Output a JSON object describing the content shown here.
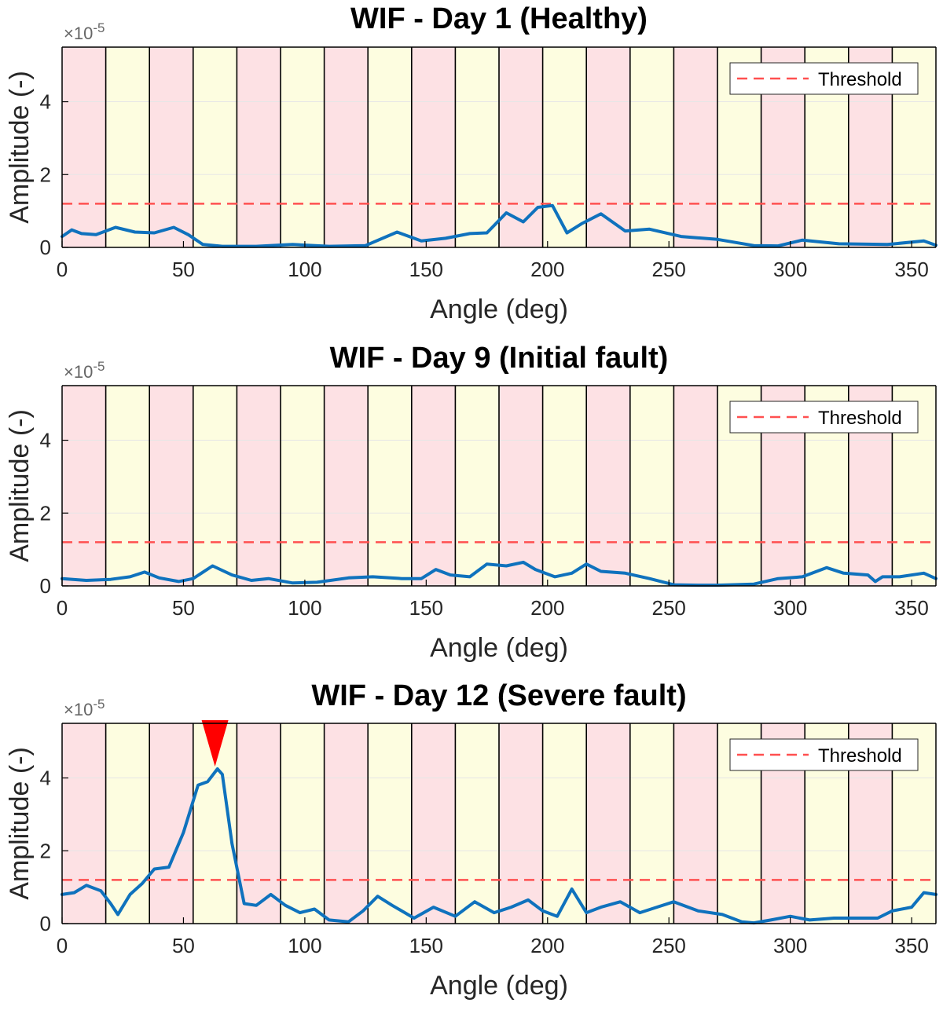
{
  "colors": {
    "band_pink": "#fde1e4",
    "band_yellow": "#fdfde0",
    "line": "#0f72bd",
    "threshold": "#ff5050",
    "marker": "#ff0000",
    "axis_text": "#262626",
    "grid": "#e6e6e6"
  },
  "chart_data": [
    {
      "type": "line",
      "title": "WIF - Day 1 (Healthy)",
      "xlabel": "Angle (deg)",
      "ylabel": "Amplitude (-)",
      "exponent_label": "×10",
      "exponent_power": "-5",
      "xlim": [
        0,
        360
      ],
      "ylim": [
        0,
        5.5
      ],
      "xticks": [
        "0",
        "50",
        "100",
        "150",
        "200",
        "250",
        "300",
        "350"
      ],
      "yticks": [
        "0",
        "2",
        "4"
      ],
      "legend": {
        "label": "Threshold",
        "position": "top-right"
      },
      "threshold": 1.2,
      "band_width_deg": 18,
      "grid": true,
      "x": [
        0,
        4,
        8,
        14,
        22,
        30,
        38,
        46,
        52,
        58,
        66,
        80,
        95,
        110,
        125,
        138,
        148,
        158,
        168,
        175,
        183,
        190,
        196,
        202,
        208,
        214,
        222,
        232,
        242,
        255,
        270,
        285,
        295,
        305,
        320,
        340,
        355,
        360
      ],
      "y": [
        0.3,
        0.48,
        0.38,
        0.35,
        0.55,
        0.42,
        0.4,
        0.55,
        0.35,
        0.08,
        0.03,
        0.03,
        0.08,
        0.03,
        0.05,
        0.42,
        0.18,
        0.25,
        0.38,
        0.4,
        0.95,
        0.7,
        1.1,
        1.15,
        0.4,
        0.65,
        0.92,
        0.45,
        0.5,
        0.3,
        0.22,
        0.05,
        0.04,
        0.2,
        0.1,
        0.08,
        0.18,
        0.06
      ]
    },
    {
      "type": "line",
      "title": "WIF - Day 9 (Initial fault)",
      "xlabel": "Angle (deg)",
      "ylabel": "Amplitude (-)",
      "exponent_label": "×10",
      "exponent_power": "-5",
      "xlim": [
        0,
        360
      ],
      "ylim": [
        0,
        5.5
      ],
      "xticks": [
        "0",
        "50",
        "100",
        "150",
        "200",
        "250",
        "300",
        "350"
      ],
      "yticks": [
        "0",
        "2",
        "4"
      ],
      "legend": {
        "label": "Threshold",
        "position": "top-right"
      },
      "threshold": 1.2,
      "band_width_deg": 18,
      "grid": true,
      "x": [
        0,
        10,
        20,
        28,
        34,
        40,
        48,
        54,
        62,
        70,
        78,
        85,
        95,
        105,
        118,
        128,
        140,
        148,
        154,
        160,
        168,
        175,
        183,
        190,
        195,
        203,
        210,
        216,
        222,
        232,
        242,
        252,
        262,
        270,
        285,
        295,
        305,
        315,
        322,
        332,
        335,
        338,
        345,
        355,
        360
      ],
      "y": [
        0.2,
        0.15,
        0.18,
        0.25,
        0.38,
        0.22,
        0.12,
        0.2,
        0.55,
        0.3,
        0.15,
        0.2,
        0.08,
        0.1,
        0.22,
        0.25,
        0.2,
        0.2,
        0.45,
        0.3,
        0.25,
        0.6,
        0.55,
        0.65,
        0.45,
        0.25,
        0.35,
        0.6,
        0.4,
        0.35,
        0.2,
        0.03,
        0.02,
        0.02,
        0.05,
        0.2,
        0.25,
        0.5,
        0.35,
        0.3,
        0.12,
        0.25,
        0.25,
        0.35,
        0.2
      ]
    },
    {
      "type": "line",
      "title": "WIF - Day 12 (Severe fault)",
      "xlabel": "Angle (deg)",
      "ylabel": "Amplitude (-)",
      "exponent_label": "×10",
      "exponent_power": "-5",
      "xlim": [
        0,
        360
      ],
      "ylim": [
        0,
        5.5
      ],
      "xticks": [
        "0",
        "50",
        "100",
        "150",
        "200",
        "250",
        "300",
        "350"
      ],
      "yticks": [
        "0",
        "2",
        "4"
      ],
      "legend": {
        "label": "Threshold",
        "position": "top-right"
      },
      "threshold": 1.2,
      "band_width_deg": 18,
      "grid": true,
      "marker_x": 63,
      "x": [
        0,
        5,
        10,
        16,
        20,
        23,
        28,
        33,
        38,
        44,
        50,
        56,
        60,
        64,
        66,
        70,
        75,
        80,
        86,
        92,
        98,
        104,
        110,
        118,
        124,
        130,
        136,
        145,
        153,
        162,
        170,
        178,
        185,
        192,
        198,
        204,
        210,
        216,
        222,
        230,
        238,
        245,
        252,
        262,
        272,
        280,
        285,
        292,
        300,
        308,
        318,
        328,
        336,
        342,
        350,
        355,
        360
      ],
      "y": [
        0.8,
        0.85,
        1.05,
        0.9,
        0.55,
        0.25,
        0.8,
        1.1,
        1.5,
        1.55,
        2.5,
        3.8,
        3.9,
        4.25,
        4.1,
        2.2,
        0.55,
        0.5,
        0.8,
        0.5,
        0.3,
        0.4,
        0.1,
        0.05,
        0.35,
        0.75,
        0.5,
        0.15,
        0.45,
        0.2,
        0.6,
        0.3,
        0.45,
        0.65,
        0.35,
        0.2,
        0.95,
        0.3,
        0.45,
        0.6,
        0.3,
        0.45,
        0.6,
        0.35,
        0.25,
        0.05,
        0.02,
        0.1,
        0.2,
        0.1,
        0.15,
        0.15,
        0.15,
        0.35,
        0.45,
        0.85,
        0.8
      ]
    }
  ]
}
